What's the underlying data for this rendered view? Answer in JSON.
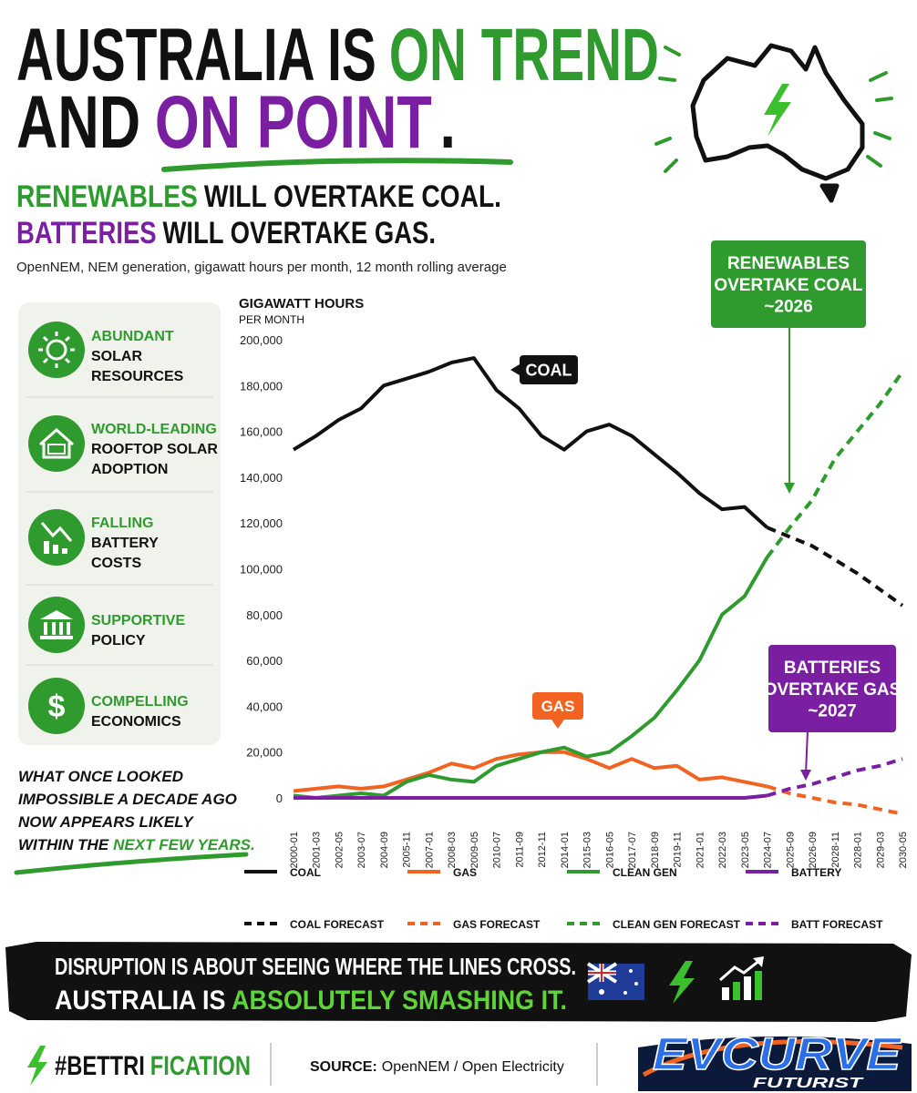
{
  "header": {
    "title_line1": [
      "AUSTRALIA IS",
      "ON TREND"
    ],
    "title_line2": [
      "AND",
      "ON POINT",
      "."
    ],
    "subtitle_line1": [
      "RENEWABLES",
      "WILL OVERTAKE COAL."
    ],
    "subtitle_line2": [
      "BATTERIES",
      "WILL OVERTAKE GAS."
    ],
    "source_note": "OpenNEM, NEM generation, gigawatt hours per month, 12 month rolling average"
  },
  "drivers": [
    {
      "highlight": "ABUNDANT",
      "lines": [
        "SOLAR",
        "RESOURCES"
      ]
    },
    {
      "highlight": "WORLD-LEADING",
      "lines": [
        "ROOFTOP SOLAR",
        "ADOPTION"
      ]
    },
    {
      "highlight": "FALLING",
      "lines": [
        "BATTERY",
        "COSTS"
      ]
    },
    {
      "highlight": "SUPPORTIVE",
      "lines": [
        "POLICY"
      ]
    },
    {
      "highlight": "COMPELLING",
      "lines": [
        "ECONOMICS"
      ]
    }
  ],
  "note": {
    "lines": [
      "WHAT ONCE LOOKED",
      "IMPOSSIBLE A DECADE AGO",
      "NOW APPEARS LIKELY",
      "WITHIN THE"
    ],
    "highlight": "NEXT FEW YEARS."
  },
  "chart_data": {
    "type": "line",
    "y_label": "GIGAWATT HOURS",
    "y_sublabel": "PER MONTH",
    "categories": [
      "2000-01",
      "2001-03",
      "2002-05",
      "2003-07",
      "2004-09",
      "2005-11",
      "2007-01",
      "2008-03",
      "2009-05",
      "2010-07",
      "2011-09",
      "2012-11",
      "2014-01",
      "2015-03",
      "2016-05",
      "2017-07",
      "2018-09",
      "2019-11",
      "2021-01",
      "2022-03",
      "2023-05",
      "2024-07",
      "2025-09",
      "2026-09",
      "2028-11",
      "2028-01",
      "2029-03",
      "2030-05"
    ],
    "series": [
      {
        "name": "COAL",
        "color": "#111111",
        "dash": false,
        "values": [
          152000,
          158000,
          165000,
          170000,
          180000,
          183000,
          186000,
          190000,
          192000,
          178000,
          170000,
          158000,
          152000,
          160000,
          163000,
          158000,
          150000,
          142000,
          133000,
          126000,
          127000,
          118000,
          null,
          null,
          null,
          null,
          null,
          null
        ]
      },
      {
        "name": "GAS",
        "color": "#f26322",
        "dash": false,
        "values": [
          3000,
          4000,
          5000,
          4000,
          5000,
          8000,
          11000,
          15000,
          13000,
          17000,
          19000,
          20000,
          20000,
          17000,
          13000,
          17000,
          13000,
          14000,
          8000,
          9000,
          7000,
          5000,
          null,
          null,
          null,
          null,
          null,
          null
        ]
      },
      {
        "name": "CLEAN GEN",
        "color": "#2f9b2f",
        "dash": false,
        "values": [
          1000,
          0,
          1000,
          2000,
          1000,
          7000,
          10000,
          8000,
          7000,
          14000,
          17000,
          20000,
          22000,
          18000,
          20000,
          27000,
          35000,
          47000,
          60000,
          80000,
          88000,
          105000,
          null,
          null,
          null,
          null,
          null,
          null
        ]
      },
      {
        "name": "BATTERY",
        "color": "#7a1fa2",
        "dash": false,
        "values": [
          0,
          0,
          0,
          0,
          0,
          0,
          0,
          0,
          0,
          0,
          0,
          0,
          0,
          0,
          0,
          0,
          0,
          0,
          0,
          0,
          0,
          1000,
          null,
          null,
          null,
          null,
          null,
          null
        ]
      },
      {
        "name": "COAL FORECAST",
        "color": "#111111",
        "dash": true,
        "values": [
          null,
          null,
          null,
          null,
          null,
          null,
          null,
          null,
          null,
          null,
          null,
          null,
          null,
          null,
          null,
          null,
          null,
          null,
          null,
          null,
          null,
          118000,
          114000,
          110000,
          104000,
          98000,
          91000,
          84000
        ]
      },
      {
        "name": "GAS FORECAST",
        "color": "#f26322",
        "dash": true,
        "values": [
          null,
          null,
          null,
          null,
          null,
          null,
          null,
          null,
          null,
          null,
          null,
          null,
          null,
          null,
          null,
          null,
          null,
          null,
          null,
          null,
          null,
          5000,
          2000,
          0,
          -2000,
          -3000,
          -5000,
          -7000
        ]
      },
      {
        "name": "CLEAN GEN FORECAST",
        "color": "#2f9b2f",
        "dash": true,
        "values": [
          null,
          null,
          null,
          null,
          null,
          null,
          null,
          null,
          null,
          null,
          null,
          null,
          null,
          null,
          null,
          null,
          null,
          null,
          null,
          null,
          null,
          105000,
          118000,
          130000,
          148000,
          160000,
          172000,
          186000
        ]
      },
      {
        "name": "BATT FORECAST",
        "color": "#7a1fa2",
        "dash": true,
        "values": [
          null,
          null,
          null,
          null,
          null,
          null,
          null,
          null,
          null,
          null,
          null,
          null,
          null,
          null,
          null,
          null,
          null,
          null,
          null,
          null,
          null,
          1000,
          4000,
          6000,
          9000,
          12000,
          14000,
          17000
        ]
      }
    ],
    "ylim": [
      -12000,
      200000
    ],
    "yticks": [
      0,
      {
        "value": 20000,
        "label": "20,000"
      },
      {
        "value": 40000,
        "label": "40,000"
      },
      {
        "value": 60000,
        "label": "60,000"
      },
      {
        "value": 80000,
        "label": "80,000"
      },
      {
        "value": 100000,
        "label": "100,000"
      },
      {
        "value": 120000,
        "label": "120,000"
      },
      {
        "value": 140000,
        "label": "140,000"
      },
      {
        "value": 160000,
        "label": "160,000"
      },
      {
        "value": 180000,
        "label": "180,000"
      },
      {
        "value": 200000,
        "label": "200,000"
      }
    ],
    "grid": false,
    "annotations": [
      {
        "lines": [
          "COAL"
        ]
      },
      {
        "lines": [
          "GAS"
        ]
      },
      {
        "lines": [
          "RENEWABLES",
          "OVERTAKE COAL",
          "~2026"
        ]
      },
      {
        "lines": [
          "BATTERIES",
          "OVERTAKE GAS",
          "~2027"
        ]
      }
    ]
  },
  "banner": {
    "line1": "DISRUPTION IS ABOUT SEEING WHERE THE LINES CROSS.",
    "line2": [
      "AUSTRALIA IS",
      "ABSOLUTELY SMASHING IT."
    ]
  },
  "footer": {
    "hashtag": [
      "#BETTRI",
      "FICATION"
    ],
    "source_label": "SOURCE:",
    "source": "OpenNEM / Open Electricity",
    "logo": [
      "EVCURVE",
      "FUTURIST"
    ]
  }
}
